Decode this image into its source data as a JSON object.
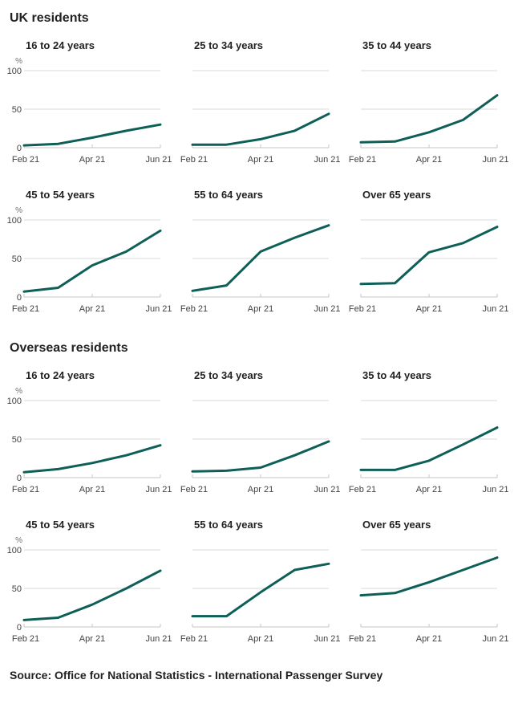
{
  "source_line": "Source: Office for National Statistics - International Passenger Survey",
  "colors": {
    "line": "#0d5f58",
    "grid": "#d9d9d9",
    "axis": "#c6c6c6",
    "tick_label": "#414042",
    "unit_label": "#707071",
    "heading": "#222222"
  },
  "chart_data": {
    "type": "line",
    "x": [
      "Feb 21",
      "Mar 21",
      "Apr 21",
      "May 21",
      "Jun 21"
    ],
    "x_tick_labels": [
      "Feb 21",
      "Apr 21",
      "Jun 21"
    ],
    "xlabel": "",
    "ylabel": "%",
    "ylim": [
      0,
      100
    ],
    "yticks": [
      100,
      50,
      0
    ],
    "grid": true,
    "legend": "none",
    "sections": [
      {
        "heading": "UK residents",
        "charts": [
          {
            "title": "16 to 24 years",
            "values": [
              3,
              5,
              13,
              22,
              30
            ]
          },
          {
            "title": "25 to 34 years",
            "values": [
              4,
              4,
              11,
              22,
              44
            ]
          },
          {
            "title": "35 to 44 years",
            "values": [
              7,
              8,
              20,
              36,
              68
            ]
          },
          {
            "title": "45 to 54 years",
            "values": [
              7,
              12,
              41,
              59,
              86
            ]
          },
          {
            "title": "55 to 64 years",
            "values": [
              8,
              15,
              59,
              77,
              93
            ]
          },
          {
            "title": "Over 65 years",
            "values": [
              17,
              18,
              58,
              70,
              91
            ]
          }
        ]
      },
      {
        "heading": "Overseas residents",
        "charts": [
          {
            "title": "16 to 24 years",
            "values": [
              7,
              11,
              19,
              29,
              42
            ]
          },
          {
            "title": "25 to 34 years",
            "values": [
              8,
              9,
              13,
              29,
              47
            ]
          },
          {
            "title": "35 to 44 years",
            "values": [
              10,
              10,
              22,
              43,
              65
            ]
          },
          {
            "title": "45 to 54 years",
            "values": [
              9,
              12,
              29,
              50,
              73
            ]
          },
          {
            "title": "55 to 64 years",
            "values": [
              14,
              14,
              45,
              74,
              82
            ]
          },
          {
            "title": "Over 65 years",
            "values": [
              41,
              44,
              58,
              74,
              90
            ]
          }
        ]
      }
    ]
  }
}
